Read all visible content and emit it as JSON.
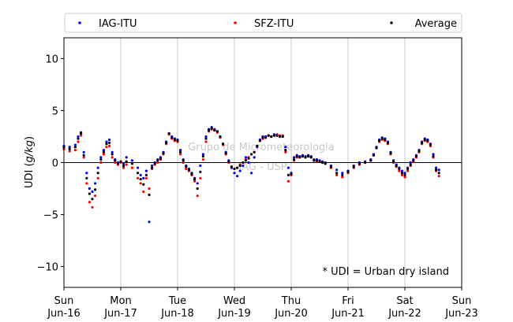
{
  "chart_data": {
    "type": "scatter",
    "ylabel": "UDI (g/kg)",
    "ylim": [
      -12,
      12
    ],
    "yticks": [
      -10,
      -5,
      0,
      5,
      10
    ],
    "xlim": [
      0,
      7
    ],
    "xticks": [
      {
        "x": 0,
        "day": "Sun",
        "date": "Jun-16"
      },
      {
        "x": 1,
        "day": "Mon",
        "date": "Jun-17"
      },
      {
        "x": 2,
        "day": "Tue",
        "date": "Jun-18"
      },
      {
        "x": 3,
        "day": "Wed",
        "date": "Jun-19"
      },
      {
        "x": 4,
        "day": "Thu",
        "date": "Jun-20"
      },
      {
        "x": 5,
        "day": "Fri",
        "date": "Jun-21"
      },
      {
        "x": 6,
        "day": "Sat",
        "date": "Jun-22"
      },
      {
        "x": 7,
        "day": "Sun",
        "date": "Jun-23"
      }
    ],
    "grid": "vertical",
    "legend_position": "top",
    "annotation": "* UDI = Urban dry island",
    "watermark": [
      "Grupo de Micrometeorologia",
      "IAG - USP"
    ],
    "zero_line": true,
    "series": [
      {
        "name": "IAG-ITU",
        "color": "#0000ff",
        "x": [
          0.0,
          0.1,
          0.2,
          0.25,
          0.3,
          0.35,
          0.4,
          0.45,
          0.5,
          0.55,
          0.6,
          0.65,
          0.7,
          0.75,
          0.8,
          0.85,
          0.9,
          0.95,
          1.0,
          1.05,
          1.1,
          1.2,
          1.3,
          1.35,
          1.4,
          1.45,
          1.5,
          1.55,
          1.6,
          1.65,
          1.7,
          1.75,
          1.8,
          1.85,
          1.9,
          1.95,
          2.0,
          2.05,
          2.1,
          2.15,
          2.2,
          2.25,
          2.3,
          2.35,
          2.4,
          2.45,
          2.5,
          2.55,
          2.6,
          2.65,
          2.7,
          2.75,
          2.8,
          2.85,
          2.9,
          2.95,
          3.0,
          3.05,
          3.1,
          3.15,
          3.2,
          3.25,
          3.3,
          3.35,
          3.4,
          3.45,
          3.5,
          3.55,
          3.6,
          3.65,
          3.7,
          3.75,
          3.8,
          3.85,
          3.9,
          3.95,
          4.0,
          4.05,
          4.1,
          4.15,
          4.2,
          4.25,
          4.3,
          4.35,
          4.4,
          4.45,
          4.5,
          4.55,
          4.6,
          4.7,
          4.8,
          4.9,
          5.0,
          5.1,
          5.2,
          5.3,
          5.4,
          5.45,
          5.5,
          5.55,
          5.6,
          5.65,
          5.7,
          5.75,
          5.8,
          5.85,
          5.9,
          5.95,
          6.0,
          6.05,
          6.1,
          6.15,
          6.2,
          6.25,
          6.3,
          6.35,
          6.4,
          6.45,
          6.5,
          6.55,
          6.6
        ],
        "y": [
          1.6,
          1.5,
          1.7,
          2.5,
          2.9,
          1.0,
          -1.0,
          -2.5,
          -2.8,
          -2.0,
          -0.5,
          0.5,
          1.2,
          2.0,
          2.2,
          1.0,
          0.3,
          0.0,
          0.1,
          -0.1,
          0.5,
          0.2,
          -0.5,
          -1.2,
          -1.5,
          -0.8,
          -5.7,
          -0.3,
          0.0,
          0.3,
          0.5,
          1.0,
          2.0,
          2.8,
          2.5,
          2.3,
          2.2,
          1.2,
          0.3,
          -0.3,
          -0.6,
          -1.0,
          -1.5,
          -2.0,
          -0.3,
          0.8,
          2.5,
          3.2,
          3.4,
          3.2,
          3.0,
          2.5,
          1.8,
          1.0,
          0.2,
          -0.5,
          -1.0,
          -1.3,
          -0.8,
          -0.3,
          0.5,
          0.0,
          -1.0,
          0.5,
          1.5,
          2.2,
          2.5,
          2.5,
          2.6,
          2.5,
          2.7,
          2.6,
          2.5,
          2.5,
          1.5,
          -0.5,
          -1.0,
          0.5,
          0.7,
          0.6,
          0.7,
          0.6,
          0.7,
          0.6,
          0.3,
          0.3,
          0.2,
          0.1,
          0.0,
          -0.3,
          -0.7,
          -1.0,
          -0.8,
          -0.3,
          0.0,
          0.1,
          0.3,
          0.8,
          1.5,
          2.2,
          2.4,
          2.3,
          2.0,
          1.0,
          0.2,
          -0.2,
          -0.5,
          -0.8,
          -1.0,
          -0.5,
          0.0,
          0.3,
          0.7,
          1.2,
          2.0,
          2.3,
          2.2,
          1.8,
          0.8,
          -0.5,
          -0.7
        ]
      },
      {
        "name": "SFZ-ITU",
        "color": "#ff0000",
        "x": [
          0.0,
          0.1,
          0.2,
          0.25,
          0.3,
          0.35,
          0.4,
          0.45,
          0.5,
          0.55,
          0.6,
          0.65,
          0.7,
          0.75,
          0.8,
          0.85,
          0.9,
          0.95,
          1.0,
          1.05,
          1.1,
          1.2,
          1.3,
          1.35,
          1.4,
          1.45,
          1.5,
          1.55,
          1.6,
          1.65,
          1.7,
          1.75,
          1.8,
          1.85,
          1.9,
          1.95,
          2.0,
          2.05,
          2.1,
          2.15,
          2.2,
          2.25,
          2.3,
          2.35,
          2.4,
          2.45,
          2.5,
          2.55,
          2.6,
          2.65,
          2.7,
          2.75,
          2.8,
          2.85,
          2.9,
          2.95,
          3.0,
          3.05,
          3.1,
          3.15,
          3.2,
          3.25,
          3.3,
          3.35,
          3.4,
          3.45,
          3.5,
          3.55,
          3.6,
          3.65,
          3.7,
          3.75,
          3.8,
          3.85,
          3.9,
          3.95,
          4.0,
          4.05,
          4.1,
          4.15,
          4.2,
          4.25,
          4.3,
          4.35,
          4.4,
          4.45,
          4.5,
          4.55,
          4.6,
          4.7,
          4.8,
          4.9,
          5.0,
          5.1,
          5.2,
          5.3,
          5.4,
          5.45,
          5.5,
          5.55,
          5.6,
          5.65,
          5.7,
          5.75,
          5.8,
          5.85,
          5.9,
          5.95,
          6.0,
          6.05,
          6.1,
          6.15,
          6.2,
          6.25,
          6.3,
          6.35,
          6.4,
          6.45,
          6.5,
          6.55,
          6.6
        ],
        "y": [
          1.3,
          1.1,
          1.2,
          2.0,
          2.6,
          0.5,
          -2.0,
          -3.8,
          -4.3,
          -3.2,
          -1.5,
          0.0,
          0.8,
          1.5,
          1.6,
          0.5,
          0.0,
          -0.2,
          0.0,
          -0.5,
          -0.2,
          -0.5,
          -1.5,
          -2.0,
          -2.8,
          -1.5,
          -2.5,
          -0.6,
          -0.2,
          0.0,
          0.3,
          0.8,
          1.8,
          2.7,
          2.3,
          2.1,
          2.0,
          0.8,
          0.0,
          -0.6,
          -0.8,
          -1.2,
          -1.8,
          -3.2,
          -1.5,
          0.3,
          2.0,
          3.0,
          3.2,
          3.1,
          2.9,
          2.4,
          1.7,
          0.8,
          0.0,
          -0.4,
          -0.6,
          -0.5,
          -0.2,
          0.0,
          0.3,
          0.5,
          0.8,
          1.0,
          1.6,
          2.1,
          2.3,
          2.4,
          2.6,
          2.5,
          2.6,
          2.7,
          2.6,
          2.6,
          1.0,
          -1.8,
          -1.2,
          0.2,
          0.5,
          0.5,
          0.6,
          0.5,
          0.6,
          0.5,
          0.2,
          0.1,
          0.1,
          0.0,
          -0.1,
          -0.5,
          -1.2,
          -1.4,
          -1.0,
          -0.5,
          -0.2,
          0.0,
          0.2,
          0.7,
          1.4,
          2.0,
          2.2,
          2.1,
          1.8,
          0.8,
          0.0,
          -0.4,
          -0.8,
          -1.2,
          -1.4,
          -0.8,
          -0.3,
          0.1,
          0.5,
          1.0,
          1.8,
          2.1,
          2.0,
          1.6,
          0.5,
          -0.8,
          -1.3
        ]
      },
      {
        "name": "Average",
        "color": "#000000",
        "x": [
          0.0,
          0.1,
          0.2,
          0.25,
          0.3,
          0.35,
          0.4,
          0.45,
          0.5,
          0.55,
          0.6,
          0.65,
          0.7,
          0.75,
          0.8,
          0.85,
          0.9,
          0.95,
          1.0,
          1.05,
          1.1,
          1.2,
          1.3,
          1.35,
          1.4,
          1.45,
          1.5,
          1.55,
          1.6,
          1.65,
          1.7,
          1.75,
          1.8,
          1.85,
          1.9,
          1.95,
          2.0,
          2.05,
          2.1,
          2.15,
          2.2,
          2.25,
          2.3,
          2.35,
          2.4,
          2.45,
          2.5,
          2.55,
          2.6,
          2.65,
          2.7,
          2.75,
          2.8,
          2.85,
          2.9,
          2.95,
          3.0,
          3.05,
          3.1,
          3.15,
          3.2,
          3.25,
          3.3,
          3.35,
          3.4,
          3.45,
          3.5,
          3.55,
          3.6,
          3.65,
          3.7,
          3.75,
          3.8,
          3.85,
          3.9,
          3.95,
          4.0,
          4.05,
          4.1,
          4.15,
          4.2,
          4.25,
          4.3,
          4.35,
          4.4,
          4.45,
          4.5,
          4.55,
          4.6,
          4.7,
          4.8,
          4.9,
          5.0,
          5.1,
          5.2,
          5.3,
          5.4,
          5.45,
          5.5,
          5.55,
          5.6,
          5.65,
          5.7,
          5.75,
          5.8,
          5.85,
          5.9,
          5.95,
          6.0,
          6.05,
          6.1,
          6.15,
          6.2,
          6.25,
          6.3,
          6.35,
          6.4,
          6.45,
          6.5,
          6.55,
          6.6
        ],
        "y": [
          1.5,
          1.3,
          1.5,
          2.3,
          2.8,
          0.7,
          -1.5,
          -3.0,
          -3.5,
          -2.6,
          -1.0,
          0.3,
          1.0,
          1.8,
          1.9,
          0.8,
          0.2,
          -0.1,
          0.1,
          -0.3,
          0.1,
          -0.1,
          -1.0,
          -1.6,
          -2.1,
          -1.2,
          -3.1,
          -0.5,
          -0.1,
          0.2,
          0.4,
          0.9,
          1.9,
          2.8,
          2.4,
          2.2,
          2.1,
          1.0,
          0.2,
          -0.4,
          -0.7,
          -1.1,
          -1.6,
          -2.5,
          -0.9,
          0.6,
          2.3,
          3.1,
          3.3,
          3.1,
          3.0,
          2.5,
          1.8,
          0.9,
          0.1,
          -0.4,
          -0.6,
          -0.5,
          -0.3,
          0.0,
          0.2,
          0.4,
          0.8,
          1.0,
          1.6,
          2.1,
          2.4,
          2.4,
          2.6,
          2.5,
          2.6,
          2.6,
          2.5,
          2.5,
          1.2,
          -1.2,
          -1.1,
          0.3,
          0.6,
          0.5,
          0.6,
          0.5,
          0.6,
          0.5,
          0.2,
          0.2,
          0.1,
          0.0,
          -0.1,
          -0.4,
          -1.0,
          -1.2,
          -0.9,
          -0.4,
          -0.1,
          0.0,
          0.2,
          0.7,
          1.4,
          2.1,
          2.3,
          2.2,
          1.9,
          0.9,
          0.1,
          -0.3,
          -0.6,
          -1.0,
          -1.2,
          -0.6,
          -0.2,
          0.2,
          0.6,
          1.1,
          1.9,
          2.2,
          2.1,
          1.7,
          0.6,
          -0.7,
          -1.0
        ]
      }
    ]
  }
}
